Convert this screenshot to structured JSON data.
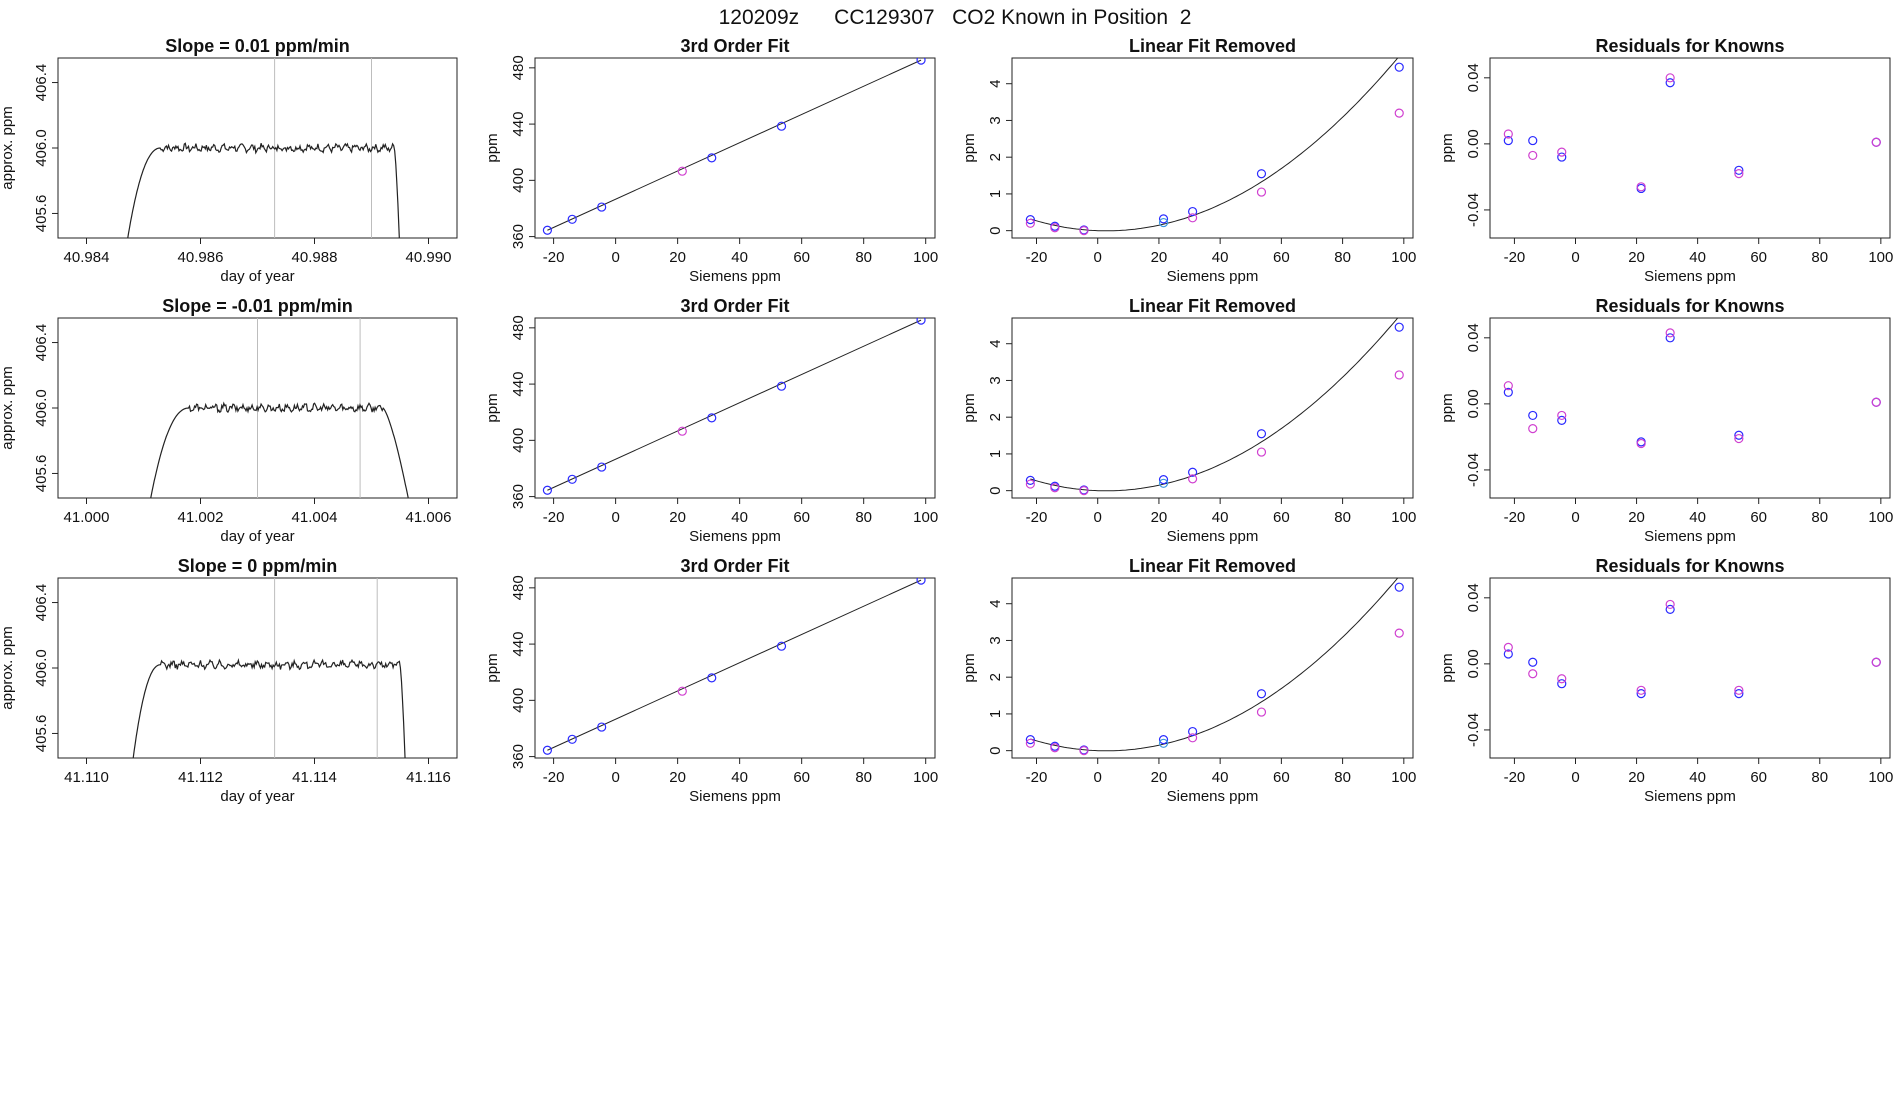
{
  "figure": {
    "title": "120209z      CC129307   CO2 Known in Position  2",
    "colors": {
      "line": "#222222",
      "vline": "#bdbdbd",
      "blue": "#2a2aff",
      "magenta": "#d040d0",
      "cyan": "#3a96e0"
    }
  },
  "chart_data": [
    {
      "type": "line",
      "panel": "r1c1",
      "title": "Slope =  0.01  ppm/min",
      "xlabel": "day of year",
      "ylabel": "approx. ppm",
      "xlim": [
        40.9835,
        40.9905
      ],
      "ylim": [
        405.45,
        406.55
      ],
      "xticks": [
        "40.984",
        "40.986",
        "40.988",
        "40.990"
      ],
      "yticks": [
        "405.6",
        "406.0",
        "406.4"
      ],
      "trace": {
        "x_start": 40.9847,
        "rise_end": 40.9853,
        "plateau": 406.0,
        "fall_start": 40.9894,
        "x_end": 40.9895
      },
      "vlines": [
        40.9873,
        40.989
      ]
    },
    {
      "type": "line",
      "panel": "r2c1",
      "title": "Slope =  -0.01  ppm/min",
      "xlabel": "day of year",
      "ylabel": "approx. ppm",
      "xlim": [
        40.9995,
        41.0065
      ],
      "ylim": [
        405.45,
        406.55
      ],
      "xticks": [
        "41.000",
        "41.002",
        "41.004",
        "41.006"
      ],
      "yticks": [
        "405.6",
        "406.0",
        "406.4"
      ],
      "trace": {
        "x_start": 41.0011,
        "rise_end": 41.0018,
        "plateau": 406.0,
        "fall_start": 41.0052,
        "x_end": 41.0057
      },
      "vlines": [
        41.003,
        41.0048
      ]
    },
    {
      "type": "line",
      "panel": "r3c1",
      "title": "Slope =  0  ppm/min",
      "xlabel": "day of year",
      "ylabel": "approx. ppm",
      "xlim": [
        41.1095,
        41.1165
      ],
      "ylim": [
        405.45,
        406.55
      ],
      "xticks": [
        "41.110",
        "41.112",
        "41.114",
        "41.116"
      ],
      "yticks": [
        "405.6",
        "406.0",
        "406.4"
      ],
      "trace": {
        "x_start": 41.1108,
        "rise_end": 41.1113,
        "plateau": 406.02,
        "fall_start": 41.1155,
        "x_end": 41.1156
      },
      "vlines": [
        41.1133,
        41.1151
      ]
    },
    {
      "type": "scatter",
      "panel": "r1c2",
      "title": "3rd Order Fit",
      "xlabel": "Siemens ppm",
      "ylabel": "ppm",
      "xlim": [
        -26,
        103
      ],
      "ylim": [
        359,
        487
      ],
      "xticks": [
        "-20",
        "0",
        "20",
        "40",
        "60",
        "80",
        "100"
      ],
      "yticks": [
        "360",
        "400",
        "440",
        "480"
      ],
      "fit": {
        "kind": "line",
        "x0": -22,
        "y0": 364.5,
        "x1": 98.5,
        "y1": 485.5
      },
      "points": [
        {
          "x": -22,
          "y": 364.5,
          "c": "blue"
        },
        {
          "x": -14,
          "y": 372.3,
          "c": "blue"
        },
        {
          "x": -4.5,
          "y": 381.0,
          "c": "blue"
        },
        {
          "x": 21.5,
          "y": 406.5,
          "c": "magenta"
        },
        {
          "x": 31,
          "y": 416.0,
          "c": "blue"
        },
        {
          "x": 53.5,
          "y": 438.5,
          "c": "blue"
        },
        {
          "x": 98.5,
          "y": 485.5,
          "c": "blue"
        }
      ]
    },
    {
      "type": "scatter",
      "panel": "r2c2",
      "title": "3rd Order Fit",
      "xlabel": "Siemens ppm",
      "ylabel": "ppm",
      "xlim": [
        -26,
        103
      ],
      "ylim": [
        359,
        487
      ],
      "xticks": [
        "-20",
        "0",
        "20",
        "40",
        "60",
        "80",
        "100"
      ],
      "yticks": [
        "360",
        "400",
        "440",
        "480"
      ],
      "fit": {
        "kind": "line",
        "x0": -22,
        "y0": 364.5,
        "x1": 98.5,
        "y1": 485.5
      },
      "points": [
        {
          "x": -22,
          "y": 364.5,
          "c": "blue"
        },
        {
          "x": -14,
          "y": 372.3,
          "c": "blue"
        },
        {
          "x": -4.5,
          "y": 381.0,
          "c": "blue"
        },
        {
          "x": 21.5,
          "y": 406.5,
          "c": "magenta"
        },
        {
          "x": 31,
          "y": 416.0,
          "c": "blue"
        },
        {
          "x": 53.5,
          "y": 438.5,
          "c": "blue"
        },
        {
          "x": 98.5,
          "y": 485.5,
          "c": "blue"
        }
      ]
    },
    {
      "type": "scatter",
      "panel": "r3c2",
      "title": "3rd Order Fit",
      "xlabel": "Siemens ppm",
      "ylabel": "ppm",
      "xlim": [
        -26,
        103
      ],
      "ylim": [
        359,
        487
      ],
      "xticks": [
        "-20",
        "0",
        "20",
        "40",
        "60",
        "80",
        "100"
      ],
      "yticks": [
        "360",
        "400",
        "440",
        "480"
      ],
      "fit": {
        "kind": "line",
        "x0": -22,
        "y0": 364.5,
        "x1": 98.5,
        "y1": 485.5
      },
      "points": [
        {
          "x": -22,
          "y": 364.5,
          "c": "blue"
        },
        {
          "x": -14,
          "y": 372.3,
          "c": "blue"
        },
        {
          "x": -4.5,
          "y": 381.0,
          "c": "blue"
        },
        {
          "x": 21.5,
          "y": 406.5,
          "c": "magenta"
        },
        {
          "x": 31,
          "y": 416.0,
          "c": "blue"
        },
        {
          "x": 53.5,
          "y": 438.5,
          "c": "blue"
        },
        {
          "x": 98.5,
          "y": 485.5,
          "c": "blue"
        }
      ]
    },
    {
      "type": "scatter",
      "panel": "r1c3",
      "title": "Linear Fit Removed",
      "xlabel": "Siemens ppm",
      "ylabel": "ppm",
      "xlim": [
        -28,
        103
      ],
      "ylim": [
        -0.2,
        4.7
      ],
      "xticks": [
        "-20",
        "0",
        "20",
        "40",
        "60",
        "80",
        "100"
      ],
      "yticks": [
        "0",
        "1",
        "2",
        "3",
        "4"
      ],
      "fit": {
        "kind": "poly",
        "coef": [
          0.0,
          -0.003,
          0.00052
        ],
        "xmin": -22,
        "xmax": 98.5
      },
      "points": [
        {
          "x": -22,
          "y": 0.3,
          "c": "blue"
        },
        {
          "x": -22,
          "y": 0.2,
          "c": "magenta"
        },
        {
          "x": -14,
          "y": 0.12,
          "c": "blue"
        },
        {
          "x": -14,
          "y": 0.08,
          "c": "magenta"
        },
        {
          "x": -4.5,
          "y": 0.02,
          "c": "blue"
        },
        {
          "x": -4.5,
          "y": 0.0,
          "c": "magenta"
        },
        {
          "x": 21.5,
          "y": 0.32,
          "c": "blue"
        },
        {
          "x": 21.5,
          "y": 0.22,
          "c": "cyan"
        },
        {
          "x": 31,
          "y": 0.52,
          "c": "blue"
        },
        {
          "x": 31,
          "y": 0.35,
          "c": "magenta"
        },
        {
          "x": 53.5,
          "y": 1.55,
          "c": "blue"
        },
        {
          "x": 53.5,
          "y": 1.05,
          "c": "magenta"
        },
        {
          "x": 98.5,
          "y": 4.45,
          "c": "blue"
        },
        {
          "x": 98.5,
          "y": 3.2,
          "c": "magenta"
        }
      ]
    },
    {
      "type": "scatter",
      "panel": "r2c3",
      "title": "Linear Fit Removed",
      "xlabel": "Siemens ppm",
      "ylabel": "ppm",
      "xlim": [
        -28,
        103
      ],
      "ylim": [
        -0.2,
        4.7
      ],
      "xticks": [
        "-20",
        "0",
        "20",
        "40",
        "60",
        "80",
        "100"
      ],
      "yticks": [
        "0",
        "1",
        "2",
        "3",
        "4"
      ],
      "fit": {
        "kind": "poly",
        "coef": [
          0.0,
          -0.003,
          0.00052
        ],
        "xmin": -22,
        "xmax": 98.5
      },
      "points": [
        {
          "x": -22,
          "y": 0.28,
          "c": "blue"
        },
        {
          "x": -22,
          "y": 0.18,
          "c": "magenta"
        },
        {
          "x": -14,
          "y": 0.12,
          "c": "blue"
        },
        {
          "x": -14,
          "y": 0.08,
          "c": "magenta"
        },
        {
          "x": -4.5,
          "y": 0.02,
          "c": "blue"
        },
        {
          "x": -4.5,
          "y": 0.0,
          "c": "magenta"
        },
        {
          "x": 21.5,
          "y": 0.3,
          "c": "blue"
        },
        {
          "x": 21.5,
          "y": 0.2,
          "c": "cyan"
        },
        {
          "x": 31,
          "y": 0.5,
          "c": "blue"
        },
        {
          "x": 31,
          "y": 0.32,
          "c": "magenta"
        },
        {
          "x": 53.5,
          "y": 1.55,
          "c": "blue"
        },
        {
          "x": 53.5,
          "y": 1.05,
          "c": "magenta"
        },
        {
          "x": 98.5,
          "y": 4.45,
          "c": "blue"
        },
        {
          "x": 98.5,
          "y": 3.15,
          "c": "magenta"
        }
      ]
    },
    {
      "type": "scatter",
      "panel": "r3c3",
      "title": "Linear Fit Removed",
      "xlabel": "Siemens ppm",
      "ylabel": "ppm",
      "xlim": [
        -28,
        103
      ],
      "ylim": [
        -0.2,
        4.7
      ],
      "xticks": [
        "-20",
        "0",
        "20",
        "40",
        "60",
        "80",
        "100"
      ],
      "yticks": [
        "0",
        "1",
        "2",
        "3",
        "4"
      ],
      "fit": {
        "kind": "poly",
        "coef": [
          0.0,
          -0.003,
          0.00052
        ],
        "xmin": -22,
        "xmax": 98.5
      },
      "points": [
        {
          "x": -22,
          "y": 0.3,
          "c": "blue"
        },
        {
          "x": -22,
          "y": 0.2,
          "c": "magenta"
        },
        {
          "x": -14,
          "y": 0.12,
          "c": "blue"
        },
        {
          "x": -14,
          "y": 0.08,
          "c": "magenta"
        },
        {
          "x": -4.5,
          "y": 0.02,
          "c": "blue"
        },
        {
          "x": -4.5,
          "y": 0.0,
          "c": "magenta"
        },
        {
          "x": 21.5,
          "y": 0.3,
          "c": "blue"
        },
        {
          "x": 21.5,
          "y": 0.2,
          "c": "cyan"
        },
        {
          "x": 31,
          "y": 0.52,
          "c": "blue"
        },
        {
          "x": 31,
          "y": 0.35,
          "c": "magenta"
        },
        {
          "x": 53.5,
          "y": 1.55,
          "c": "blue"
        },
        {
          "x": 53.5,
          "y": 1.05,
          "c": "magenta"
        },
        {
          "x": 98.5,
          "y": 4.45,
          "c": "blue"
        },
        {
          "x": 98.5,
          "y": 3.2,
          "c": "magenta"
        }
      ]
    },
    {
      "type": "scatter",
      "panel": "r1c4",
      "title": "Residuals for Knowns",
      "xlabel": "Siemens ppm",
      "ylabel": "ppm",
      "xlim": [
        -28,
        103
      ],
      "ylim": [
        -0.057,
        0.052
      ],
      "xticks": [
        "-20",
        "0",
        "20",
        "40",
        "60",
        "80",
        "100"
      ],
      "yticks": [
        "-0.04",
        "0.00",
        "0.04"
      ],
      "points": [
        {
          "x": -22,
          "y": 0.002,
          "c": "blue"
        },
        {
          "x": -22,
          "y": 0.006,
          "c": "magenta"
        },
        {
          "x": -14,
          "y": 0.002,
          "c": "blue"
        },
        {
          "x": -14,
          "y": -0.007,
          "c": "magenta"
        },
        {
          "x": -4.5,
          "y": -0.008,
          "c": "blue"
        },
        {
          "x": -4.5,
          "y": -0.005,
          "c": "magenta"
        },
        {
          "x": 21.5,
          "y": -0.027,
          "c": "blue"
        },
        {
          "x": 21.5,
          "y": -0.026,
          "c": "magenta"
        },
        {
          "x": 31,
          "y": 0.037,
          "c": "blue"
        },
        {
          "x": 31,
          "y": 0.04,
          "c": "magenta"
        },
        {
          "x": 53.5,
          "y": -0.016,
          "c": "blue"
        },
        {
          "x": 53.5,
          "y": -0.018,
          "c": "magenta"
        },
        {
          "x": 98.5,
          "y": 0.001,
          "c": "blue"
        },
        {
          "x": 98.5,
          "y": 0.001,
          "c": "magenta"
        }
      ]
    },
    {
      "type": "scatter",
      "panel": "r2c4",
      "title": "Residuals for Knowns",
      "xlabel": "Siemens ppm",
      "ylabel": "ppm",
      "xlim": [
        -28,
        103
      ],
      "ylim": [
        -0.057,
        0.052
      ],
      "xticks": [
        "-20",
        "0",
        "20",
        "40",
        "60",
        "80",
        "100"
      ],
      "yticks": [
        "-0.04",
        "0.00",
        "0.04"
      ],
      "points": [
        {
          "x": -22,
          "y": 0.007,
          "c": "blue"
        },
        {
          "x": -22,
          "y": 0.011,
          "c": "magenta"
        },
        {
          "x": -14,
          "y": -0.007,
          "c": "blue"
        },
        {
          "x": -14,
          "y": -0.015,
          "c": "magenta"
        },
        {
          "x": -4.5,
          "y": -0.01,
          "c": "blue"
        },
        {
          "x": -4.5,
          "y": -0.007,
          "c": "magenta"
        },
        {
          "x": 21.5,
          "y": -0.023,
          "c": "blue"
        },
        {
          "x": 21.5,
          "y": -0.024,
          "c": "magenta"
        },
        {
          "x": 31,
          "y": 0.04,
          "c": "blue"
        },
        {
          "x": 31,
          "y": 0.043,
          "c": "magenta"
        },
        {
          "x": 53.5,
          "y": -0.019,
          "c": "blue"
        },
        {
          "x": 53.5,
          "y": -0.021,
          "c": "magenta"
        },
        {
          "x": 98.5,
          "y": 0.001,
          "c": "blue"
        },
        {
          "x": 98.5,
          "y": 0.001,
          "c": "magenta"
        }
      ]
    },
    {
      "type": "scatter",
      "panel": "r3c4",
      "title": "Residuals for Knowns",
      "xlabel": "Siemens ppm",
      "ylabel": "ppm",
      "xlim": [
        -28,
        103
      ],
      "ylim": [
        -0.057,
        0.052
      ],
      "xticks": [
        "-20",
        "0",
        "20",
        "40",
        "60",
        "80",
        "100"
      ],
      "yticks": [
        "-0.04",
        "0.00",
        "0.04"
      ],
      "points": [
        {
          "x": -22,
          "y": 0.006,
          "c": "blue"
        },
        {
          "x": -22,
          "y": 0.01,
          "c": "magenta"
        },
        {
          "x": -14,
          "y": 0.001,
          "c": "blue"
        },
        {
          "x": -14,
          "y": -0.006,
          "c": "magenta"
        },
        {
          "x": -4.5,
          "y": -0.012,
          "c": "blue"
        },
        {
          "x": -4.5,
          "y": -0.009,
          "c": "magenta"
        },
        {
          "x": 21.5,
          "y": -0.018,
          "c": "blue"
        },
        {
          "x": 21.5,
          "y": -0.016,
          "c": "magenta"
        },
        {
          "x": 31,
          "y": 0.033,
          "c": "blue"
        },
        {
          "x": 31,
          "y": 0.036,
          "c": "magenta"
        },
        {
          "x": 53.5,
          "y": -0.018,
          "c": "blue"
        },
        {
          "x": 53.5,
          "y": -0.016,
          "c": "magenta"
        },
        {
          "x": 98.5,
          "y": 0.001,
          "c": "blue"
        },
        {
          "x": 98.5,
          "y": 0.001,
          "c": "magenta"
        }
      ]
    }
  ]
}
